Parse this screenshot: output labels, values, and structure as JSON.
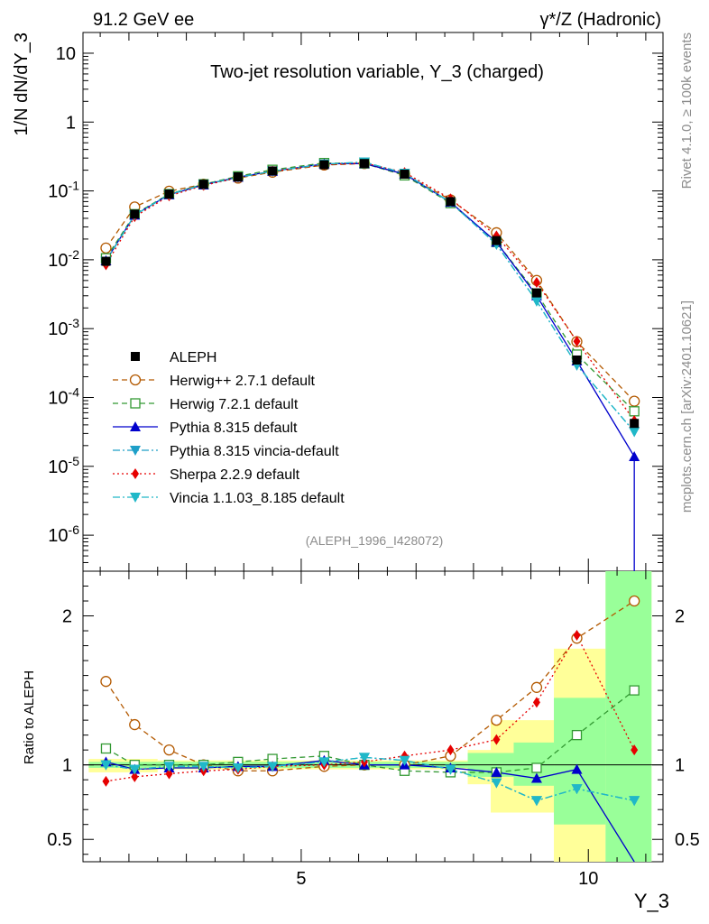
{
  "header": {
    "energy_label": "91.2 GeV ee",
    "process_label": "γ*/Z (Hadronic)",
    "rivet_label": "Rivet 4.1.0, ≥ 100k events",
    "mcplots_label": "mcplots.cern.ch [arXiv:2401.10621]"
  },
  "chart_data": {
    "type": "line",
    "title": "Two-jet resolution variable, Y_3 (charged)",
    "analysis_id": "(ALEPH_1996_I428072)",
    "xlabel": "Y_3",
    "ylabel": "1/N  dN/dY_3",
    "ratio_ylabel": "Ratio to ALEPH",
    "xlim": [
      1.2,
      11.3
    ],
    "ylim": [
      3e-07,
      20
    ],
    "yscale": "log",
    "ratio_ylim": [
      0.35,
      2.3
    ],
    "x_ticks": [
      "5",
      "10"
    ],
    "y_ticks": [
      "10^-6",
      "10^-5",
      "10^-4",
      "10^-3",
      "10^-2",
      "10^-1",
      "1",
      "10"
    ],
    "ratio_ticks": [
      "0.5",
      "1",
      "2"
    ],
    "x": [
      1.6,
      2.1,
      2.7,
      3.3,
      3.9,
      4.5,
      5.4,
      6.1,
      6.8,
      7.6,
      8.4,
      9.1,
      9.8,
      10.8
    ],
    "series": [
      {
        "name": "ALEPH",
        "color": "#000000",
        "style": "data",
        "values": [
          0.0095,
          0.046,
          0.09,
          0.125,
          0.16,
          0.195,
          0.24,
          0.25,
          0.175,
          0.07,
          0.019,
          0.0033,
          0.00035,
          4.2e-05
        ]
      },
      {
        "name": "Herwig++ 2.7.1 default",
        "color": "#b35900",
        "style": "dash",
        "ratio": [
          1.56,
          1.27,
          1.1,
          1.0,
          0.96,
          0.96,
          0.99,
          1.0,
          1.0,
          1.06,
          1.3,
          1.52,
          1.85,
          2.1
        ]
      },
      {
        "name": "Herwig 7.2.1 default",
        "color": "#339933",
        "style": "dash",
        "ratio": [
          1.11,
          1.0,
          1.0,
          1.0,
          1.02,
          1.04,
          1.06,
          1.0,
          0.96,
          0.95,
          0.95,
          0.98,
          1.2,
          1.5
        ]
      },
      {
        "name": "Pythia 8.315 default",
        "color": "#0000cc",
        "style": "solid",
        "ratio": [
          1.02,
          0.97,
          0.98,
          0.98,
          0.99,
          0.99,
          1.03,
          1.0,
          1.0,
          0.98,
          0.95,
          0.91,
          0.97,
          0.33
        ]
      },
      {
        "name": "Pythia 8.315 vincia-default",
        "color": "#1e9fc8",
        "style": "dashdot",
        "ratio": [
          1.0,
          0.97,
          0.99,
          0.99,
          0.98,
          0.99,
          1.02,
          1.05,
          1.03,
          0.97,
          0.88,
          0.76,
          0.84,
          0.76
        ]
      },
      {
        "name": "Sherpa 2.2.9 default",
        "color": "#e60000",
        "style": "dot",
        "ratio": [
          0.89,
          0.92,
          0.94,
          0.96,
          0.97,
          0.99,
          1.0,
          1.02,
          1.06,
          1.1,
          1.17,
          1.42,
          1.87,
          1.1
        ]
      },
      {
        "name": "Vincia 1.1.03_8.185 default",
        "color": "#20b8c8",
        "style": "dashdot",
        "ratio": [
          1.0,
          0.97,
          0.99,
          0.99,
          0.98,
          0.99,
          1.02,
          1.05,
          1.03,
          0.97,
          0.88,
          0.76,
          0.84,
          0.76
        ]
      }
    ]
  },
  "bands": {
    "yellow_color": "#ffff99",
    "green_color": "#99ff99",
    "yellow": [
      {
        "x": [
          1.3,
          2.5
        ],
        "lo": 0.95,
        "hi": 1.04
      },
      {
        "x": [
          2.5,
          7.9
        ],
        "lo": 0.97,
        "hi": 1.03
      },
      {
        "x": [
          7.9,
          8.3
        ],
        "lo": 0.87,
        "hi": 1.1
      },
      {
        "x": [
          8.3,
          9.4
        ],
        "lo": 0.68,
        "hi": 1.3
      },
      {
        "x": [
          9.4,
          10.3
        ],
        "lo": 0.2,
        "hi": 1.78
      },
      {
        "x": [
          10.3,
          11.1
        ],
        "lo": 0.2,
        "hi": 2.4
      }
    ],
    "green": [
      {
        "x": [
          1.3,
          7.9
        ],
        "lo": 0.98,
        "hi": 1.02
      },
      {
        "x": [
          7.9,
          8.7
        ],
        "lo": 0.92,
        "hi": 1.08
      },
      {
        "x": [
          8.7,
          9.4
        ],
        "lo": 0.86,
        "hi": 1.15
      },
      {
        "x": [
          9.4,
          10.3
        ],
        "lo": 0.6,
        "hi": 1.45
      },
      {
        "x": [
          10.3,
          11.1
        ],
        "lo": 0.2,
        "hi": 2.4
      }
    ]
  }
}
